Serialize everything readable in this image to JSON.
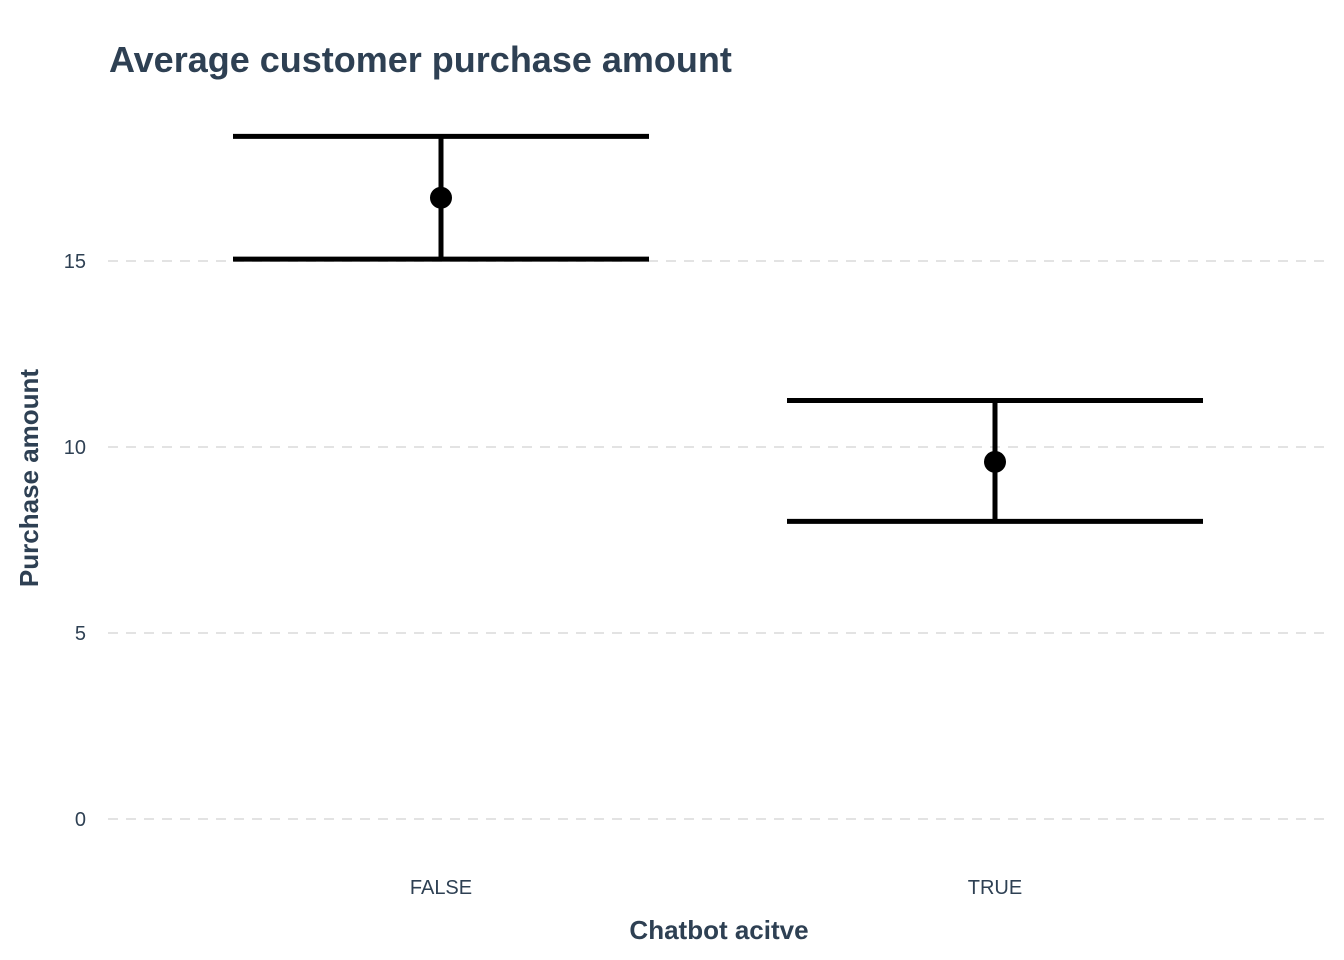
{
  "chart_data": {
    "type": "errorbar",
    "title": "Average customer purchase amount",
    "xlabel": "Chatbot acitve",
    "ylabel": "Purchase amount",
    "categories": [
      "FALSE",
      "TRUE"
    ],
    "series": [
      {
        "means": [
          16.7,
          9.6
        ],
        "lower": [
          15.05,
          8.0
        ],
        "upper": [
          18.35,
          11.25
        ]
      }
    ],
    "ylim": [
      0,
      19
    ],
    "yticks": [
      0,
      5,
      10,
      15
    ],
    "grid": true,
    "colors": {
      "text": "#2e4053",
      "marks": "#000000",
      "grid": "#e3e3e3"
    }
  }
}
